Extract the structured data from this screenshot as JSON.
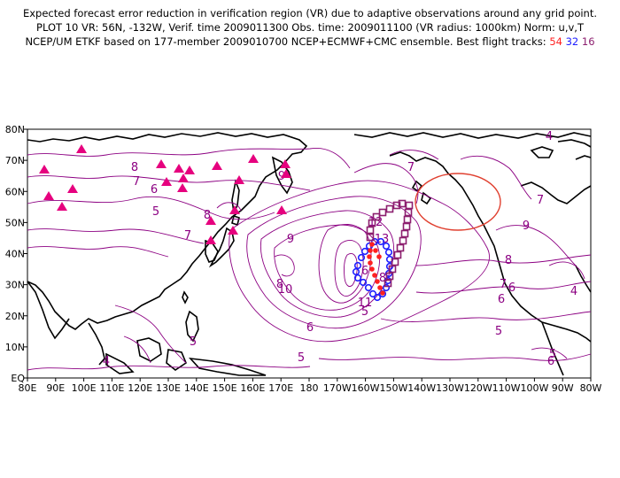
{
  "title": {
    "line1": "Expected forecast error reduction in verification region (VR) due to adaptive observations around any grid point.",
    "line2": "PLOT 10 VR: 56N, -132W, Verif. time 2009011300 Obs. time: 2009011100 (VR radius: 1000km) Norm: u,v,T",
    "line3_prefix": "NCEP/UM ETKF based on 177-member 2009010700 NCEP+ECMWF+CMC ensemble. Best flight tracks:",
    "track_a": "54",
    "track_b": "32",
    "track_c": "16"
  },
  "map": {
    "lon_labels": [
      "80E",
      "90E",
      "100E",
      "110E",
      "120E",
      "130E",
      "140E",
      "150E",
      "160E",
      "170E",
      "180",
      "170W",
      "160W",
      "150W",
      "140W",
      "130W",
      "120W",
      "110W",
      "100W",
      "90W",
      "80W"
    ],
    "lat_labels": [
      "EQ",
      "10N",
      "20N",
      "30N",
      "40N",
      "50N",
      "60N",
      "70N",
      "80N"
    ],
    "contour_labels": [
      "8",
      "7",
      "6",
      "5",
      "7",
      "8",
      "9",
      "10",
      "9",
      "8",
      "7",
      "6",
      "5",
      "6",
      "5",
      "4",
      "11",
      "12",
      "13",
      "8",
      "7",
      "6",
      "9",
      "8",
      "7",
      "6",
      "5",
      "4",
      "6",
      "5",
      "4",
      "5"
    ],
    "colors": {
      "contour": "#8c0082",
      "coast": "#000000",
      "triangle": "#e6007e",
      "track_red": "#ff2020",
      "track_blue": "#2020ff",
      "track_purple": "#8c1e6e",
      "vr_circle": "#e04030"
    },
    "tracks": {
      "track_54_label": "54",
      "track_32_label": "32",
      "track_16_label": "16"
    }
  }
}
